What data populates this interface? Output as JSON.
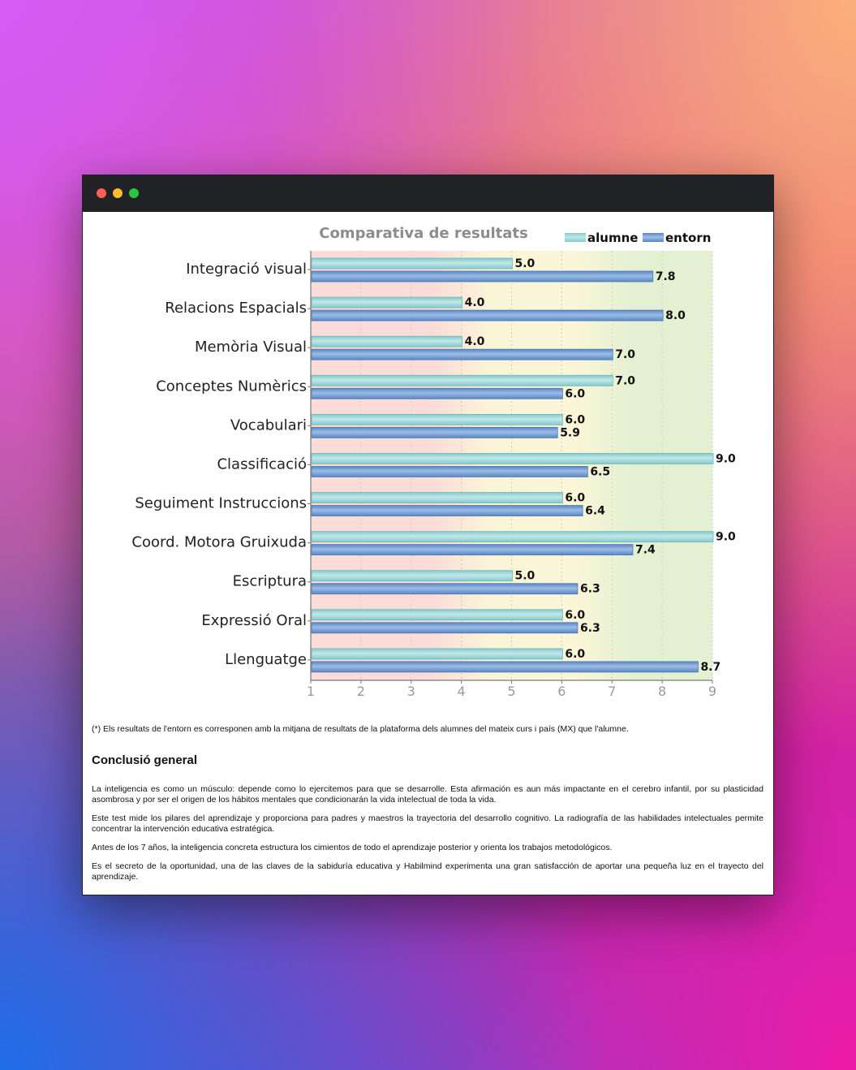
{
  "chart_data": {
    "type": "bar",
    "orientation": "horizontal",
    "title": "Comparativa de resultats",
    "categories": [
      "Integració visual",
      "Relacions Espacials",
      "Memòria Visual",
      "Conceptes Numèrics",
      "Vocabulari",
      "Classificació",
      "Seguiment Instruccions",
      "Coord. Motora Gruixuda",
      "Escriptura",
      "Expressió Oral",
      "Llenguatge"
    ],
    "series": [
      {
        "name": "alumne",
        "color": "#9ed9dc",
        "values": [
          5.0,
          4.0,
          4.0,
          7.0,
          6.0,
          9.0,
          6.0,
          9.0,
          5.0,
          6.0,
          6.0
        ]
      },
      {
        "name": "entorn",
        "color": "#6f9bd4",
        "values": [
          7.8,
          8.0,
          7.0,
          6.0,
          5.9,
          6.5,
          6.4,
          7.4,
          6.3,
          6.3,
          8.7
        ]
      }
    ],
    "value_labels": {
      "alumne": [
        "5.0",
        "4.0",
        "4.0",
        "7.0",
        "6.0",
        "9.0",
        "6.0",
        "9.0",
        "5.0",
        "6.0",
        "6.0"
      ],
      "entorn": [
        "7.8",
        "8.0",
        "7.0",
        "6.0",
        "5.9",
        "6.5",
        "6.4",
        "7.4",
        "6.3",
        "6.3",
        "8.7"
      ]
    },
    "xlim": [
      1,
      9
    ],
    "xticks": [
      "1",
      "2",
      "3",
      "4",
      "5",
      "6",
      "7",
      "8",
      "9"
    ],
    "legend_position": "top-right",
    "grid": true,
    "background_bands": [
      {
        "from": 1,
        "to": 3,
        "color": "#fbdcd8"
      },
      {
        "from": 3,
        "to": 5,
        "color": "#fbf5d8"
      },
      {
        "from": 5,
        "to": 6,
        "color": "#fbf6d8"
      },
      {
        "from": 6,
        "to": 9,
        "color": "#e4f0d2"
      }
    ]
  },
  "footnote": "(*) Els resultats de l'entorn es corresponen amb la mitjana de resultats de la plataforma dels alumnes del mateix curs i país (MX) que l'alumne.",
  "conclusion": {
    "title": "Conclusió general",
    "paragraphs": [
      "La inteligencia es como un músculo: depende como lo ejercitemos para que se desarrolle. Esta afirmación es aun más impactante en el cerebro infantil, por su plasticidad asombrosa y por ser el origen de los hábitos mentales que condicionarán la vida intelectual de toda la vida.",
      "Este test mide los pilares del aprendizaje y proporciona para padres y maestros la trayectoria del desarrollo cognitivo. La radiografía de las habilidades intelectuales permite concentrar la intervención educativa estratégica.",
      "Antes de los 7 años, la inteligencia concreta estructura los cimientos de todo el aprendizaje posterior y orienta los trabajos metodológicos.",
      "Es el secreto de la oportunidad, una de las claves de la sabiduría educativa y Habilmind experimenta una gran satisfacción de aportar una pequeña luz en el trayecto del aprendizaje."
    ]
  }
}
